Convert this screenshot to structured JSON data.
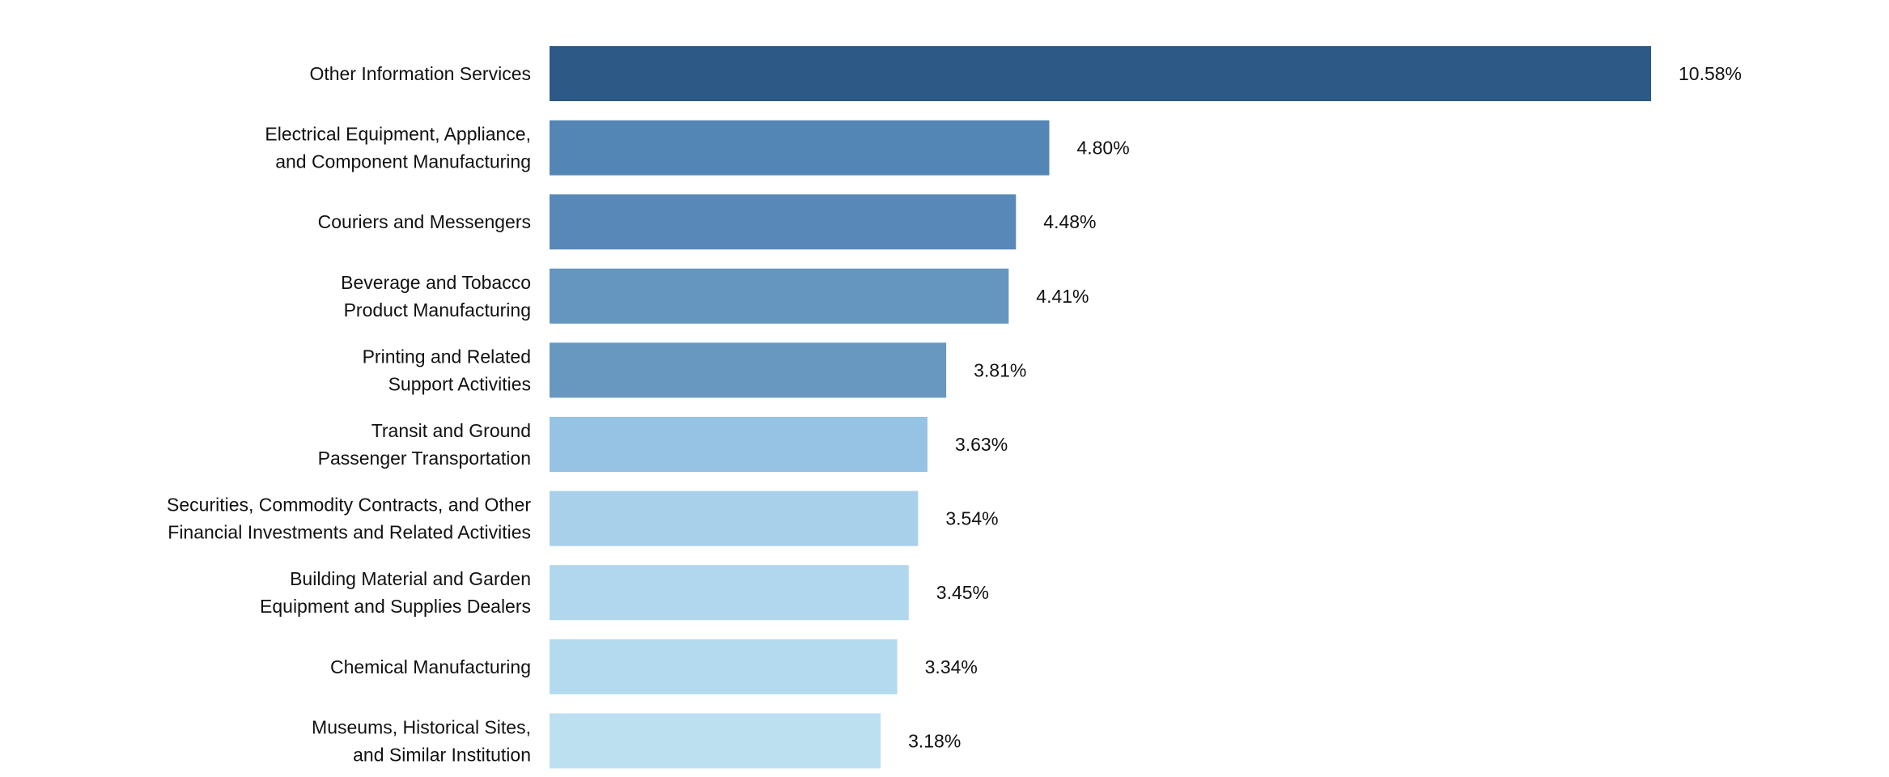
{
  "chart_data": {
    "type": "bar",
    "orientation": "horizontal",
    "categories": [
      [
        "Other Information Services"
      ],
      [
        "Electrical Equipment, Appliance,",
        "and Component Manufacturing"
      ],
      [
        "Couriers and Messengers"
      ],
      [
        "Beverage and Tobacco",
        "Product Manufacturing"
      ],
      [
        "Printing and Related",
        "Support Activities"
      ],
      [
        "Transit and Ground",
        "Passenger Transportation"
      ],
      [
        "Securities, Commodity Contracts, and Other",
        "Financial Investments and Related Activities"
      ],
      [
        "Building Material and Garden",
        "Equipment and Supplies Dealers"
      ],
      [
        "Chemical Manufacturing"
      ],
      [
        "Museums, Historical Sites,",
        "and Similar Institution"
      ]
    ],
    "values": [
      10.58,
      4.8,
      4.48,
      4.41,
      3.81,
      3.63,
      3.54,
      3.45,
      3.34,
      3.18
    ],
    "value_labels": [
      "10.58%",
      "4.80%",
      "4.48%",
      "4.41%",
      "3.81%",
      "3.63%",
      "3.54%",
      "3.45%",
      "3.34%",
      "3.18%"
    ],
    "colors": [
      "#2d5986",
      "#5486b5",
      "#5888b7",
      "#6496bf",
      "#6898c0",
      "#96c3e3",
      "#a8d0eb",
      "#b0d7ee",
      "#b4daef",
      "#bde0f1"
    ],
    "xlim": [
      0,
      10.58
    ],
    "grid": false,
    "legend": "none",
    "title": "",
    "xlabel": "",
    "ylabel": ""
  }
}
